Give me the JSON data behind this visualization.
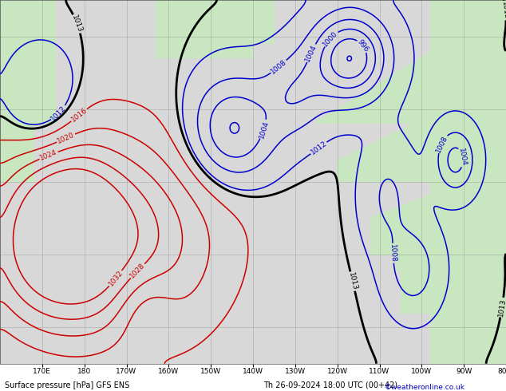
{
  "title_bottom": "Surface pressure [hPa] GFS ENS",
  "datetime_str": "Th 26-09-2024 18:00 UTC (00+42)",
  "watermark": "©weatheronline.co.uk",
  "bg_ocean": "#d8d8d8",
  "bg_land": "#c8e6c0",
  "grid_color": "#999999",
  "contour_color_low": "#0000cc",
  "contour_color_high": "#cc0000",
  "contour_color_1013": "#000000",
  "fig_width": 6.34,
  "fig_height": 4.9,
  "dpi": 100
}
